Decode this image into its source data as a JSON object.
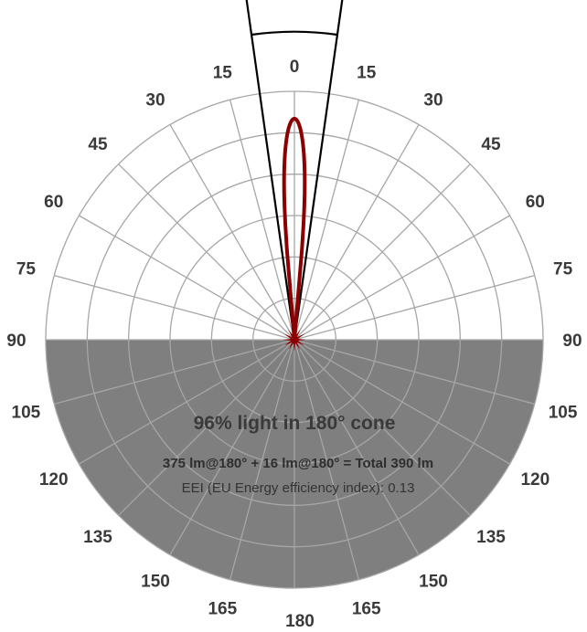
{
  "chart_data": {
    "type": "polar",
    "title": "",
    "angle_labels_left": [
      "0",
      "15",
      "30",
      "45",
      "60",
      "75",
      "90",
      "105",
      "120",
      "135",
      "150",
      "165",
      "180"
    ],
    "angle_labels_right": [
      "15",
      "30",
      "45",
      "60",
      "75",
      "90",
      "105",
      "120",
      "135",
      "150",
      "165"
    ],
    "angle_range": [
      0,
      180
    ],
    "radial_rings": 6,
    "radial_grid": true,
    "lower_half_shaded": true,
    "beam_half_angle": 5,
    "beam_cone_half_angle": 8,
    "beam_intensity_relative": 0.89,
    "series": [
      {
        "color": "#8b0000"
      }
    ],
    "annotations": {
      "headline": "96% light in 180° cone",
      "summary": "375 lm@180° + 16 lm@180° = Total 390 lm",
      "eei": "EEI (EU Energy efficiency index): 0.13"
    }
  },
  "colors": {
    "shade": "#7f7f7f",
    "grid": "#a6a6a6",
    "curve": "#8b0000",
    "cone": "#000000",
    "label": "#3a3a3a"
  }
}
